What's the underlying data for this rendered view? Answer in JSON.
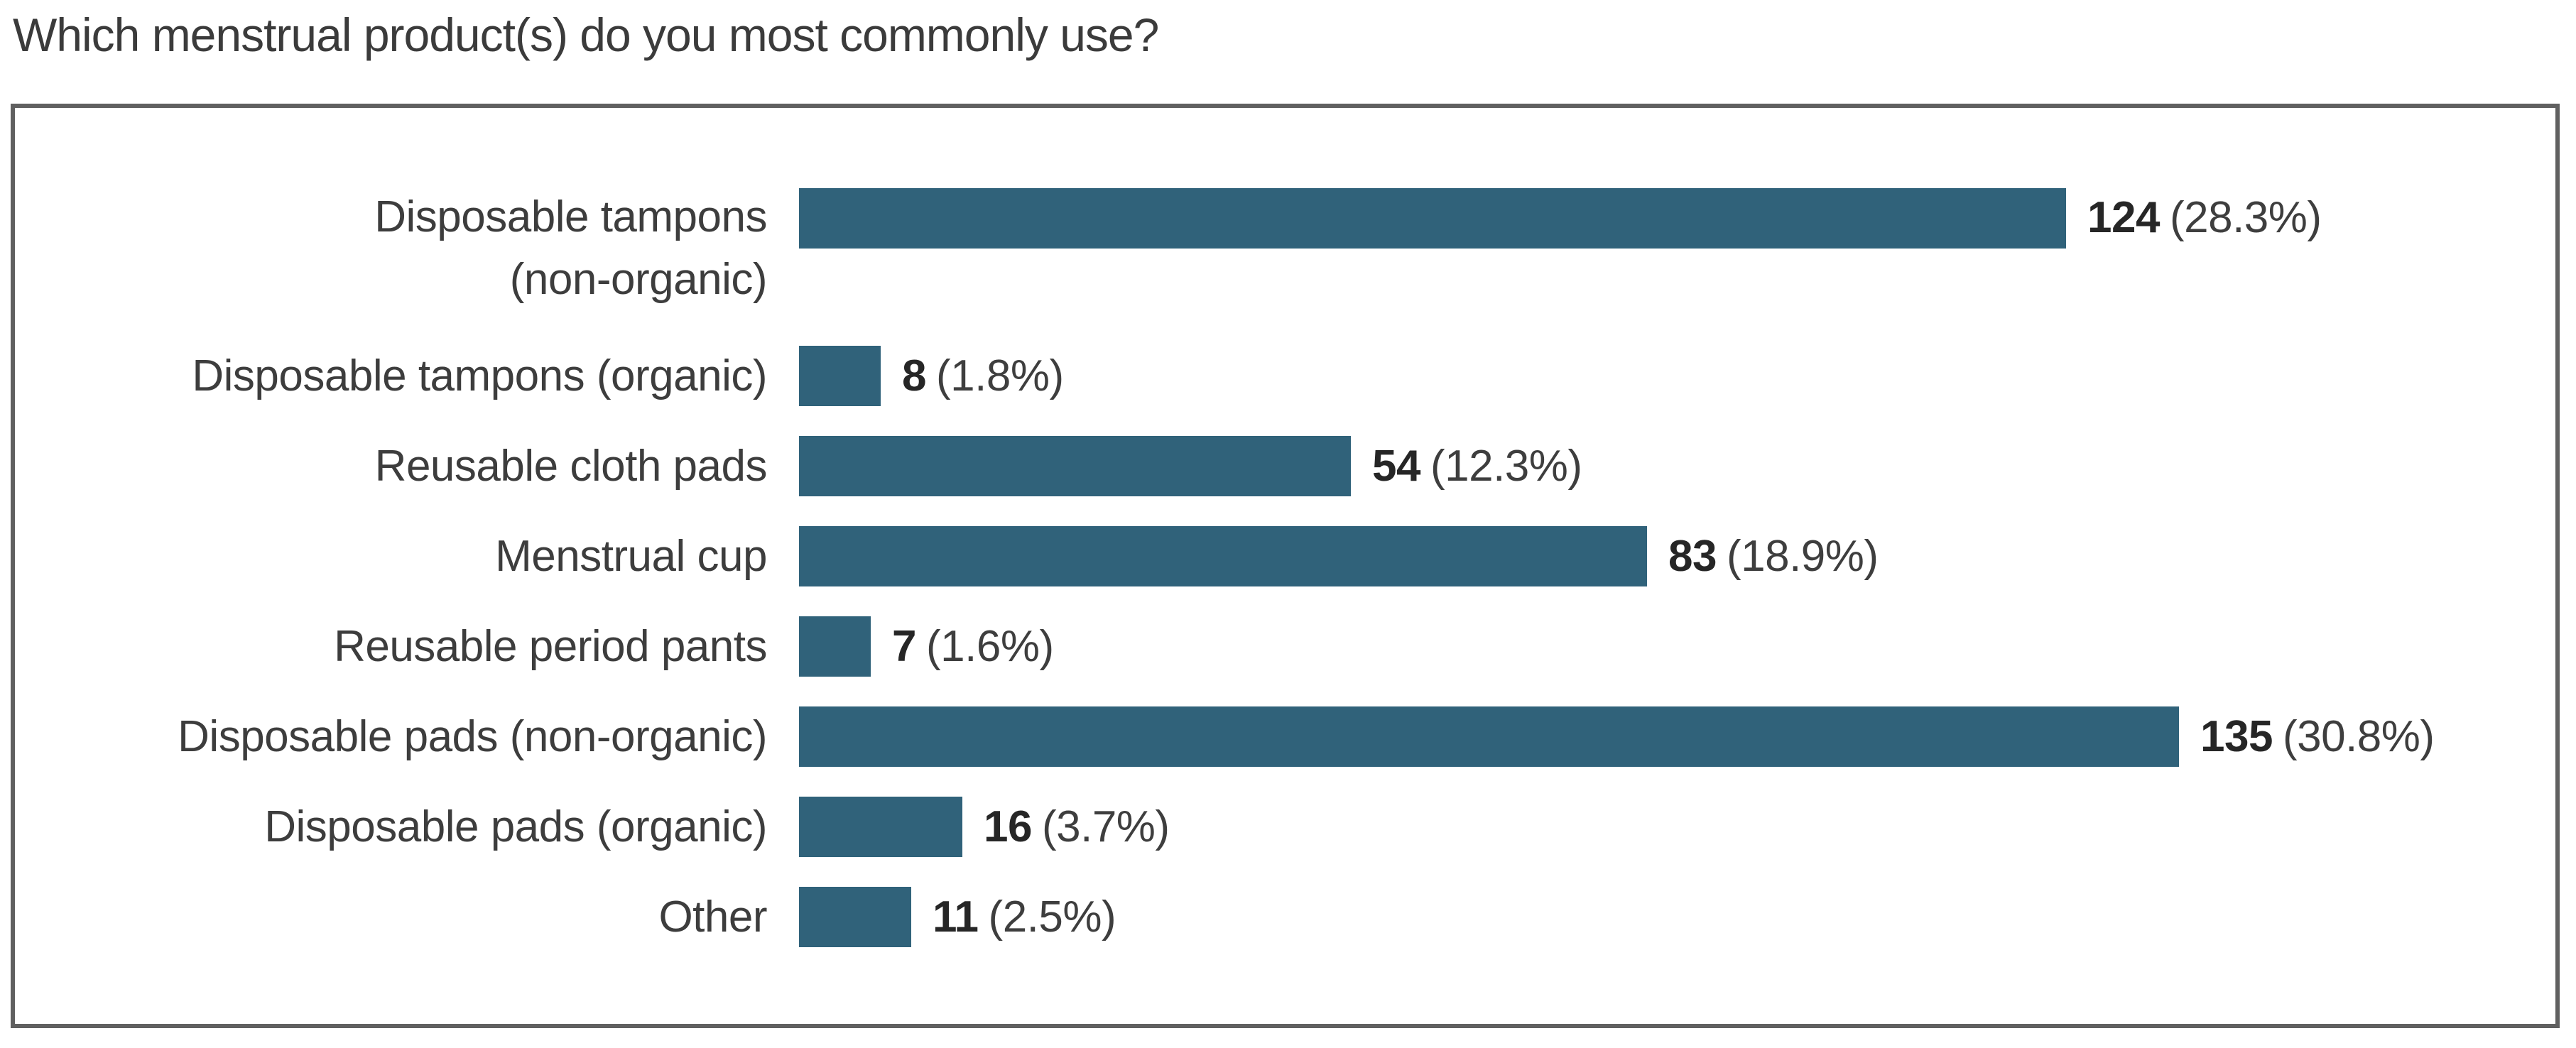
{
  "page": {
    "title": "Which menstrual product(s) do you most commonly use?"
  },
  "chart_data": {
    "type": "bar",
    "orientation": "horizontal",
    "title": "Which menstrual product(s) do you most commonly use?",
    "categories": [
      "Disposable tampons\n(non-organic)",
      "Disposable tampons (organic)",
      "Reusable cloth pads",
      "Menstrual cup",
      "Reusable period pants",
      "Disposable pads (non-organic)",
      "Disposable pads (organic)",
      "Other"
    ],
    "values": [
      124,
      8,
      54,
      83,
      7,
      135,
      16,
      11
    ],
    "percent_labels": [
      "(28.3%)",
      "(1.8%)",
      "(12.3%)",
      "(18.9%)",
      "(1.6%)",
      "(30.8%)",
      "(3.7%)",
      "(2.5%)"
    ],
    "xlim": [
      0,
      135
    ],
    "bar_color": "#30627a",
    "grid": false,
    "legend_position": "none"
  }
}
